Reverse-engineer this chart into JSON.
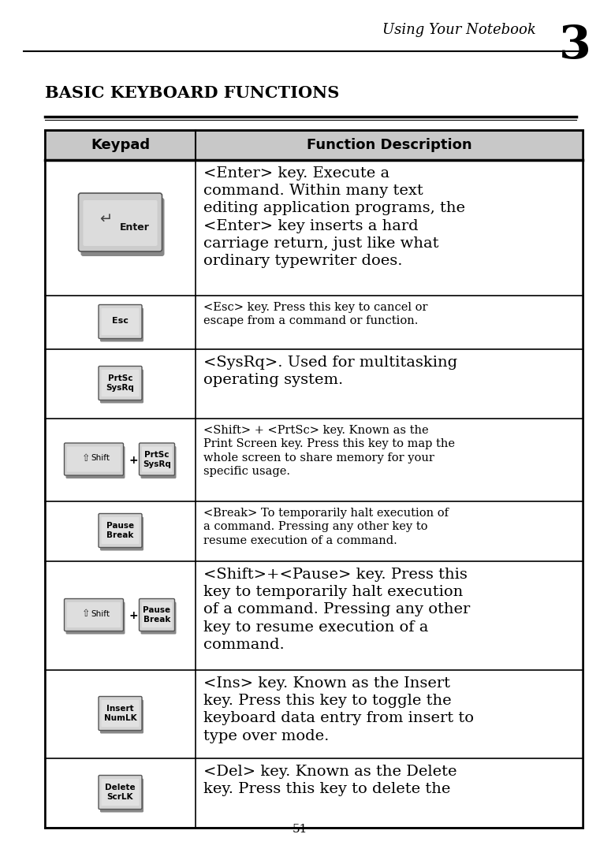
{
  "page_title": "Using Your Notebook",
  "chapter_num": "3",
  "section_title": "Basic Keyboard Functions",
  "header_col1": "Keypad",
  "header_col2": "Function Description",
  "page_number": "51",
  "bg_color": "#ffffff",
  "rows": [
    {
      "type": "enter",
      "desc_large": true,
      "desc": "<Enter> key. Execute a\ncommand. Within many text\nediting application programs, the\n<Enter> key inserts a hard\ncarriage return, just like what\nordinary typewriter does."
    },
    {
      "type": "single",
      "key_lines": [
        "Esc"
      ],
      "desc_large": false,
      "desc": "<Esc> key. Press this key to cancel or\nescape from a command or function."
    },
    {
      "type": "single",
      "key_lines": [
        "PrtSc",
        "SysRq"
      ],
      "desc_large": true,
      "desc": "<SysRq>. Used for multitasking\noperating system."
    },
    {
      "type": "combo",
      "key1_lines": [
        "Shift"
      ],
      "key2_lines": [
        "PrtSc",
        "SysRq"
      ],
      "desc_large": false,
      "desc": "<Shift> + <PrtSc> key. Known as the\nPrint Screen key. Press this key to map the\nwhole screen to share memory for your\nspecific usage."
    },
    {
      "type": "single",
      "key_lines": [
        "Pause",
        "Break"
      ],
      "desc_large": false,
      "desc": "<Break> To temporarily halt execution of\na command. Pressing any other key to\nresume execution of a command."
    },
    {
      "type": "combo",
      "key1_lines": [
        "Shift"
      ],
      "key2_lines": [
        "Pause",
        "Break"
      ],
      "desc_large": true,
      "desc": "<Shift>+<Pause> key. Press this\nkey to temporarily halt execution\nof a command. Pressing any other\nkey to resume execution of a\ncommand."
    },
    {
      "type": "single",
      "key_lines": [
        "Insert",
        "NumLK"
      ],
      "desc_large": true,
      "desc": "<Ins> key. Known as the Insert\nkey. Press this key to toggle the\nkeyboard data entry from insert to\ntype over mode."
    },
    {
      "type": "single",
      "key_lines": [
        "Delete",
        "ScrLK"
      ],
      "desc_large": true,
      "desc": "<Del> key. Known as the Delete\nkey. Press this key to delete the"
    }
  ]
}
